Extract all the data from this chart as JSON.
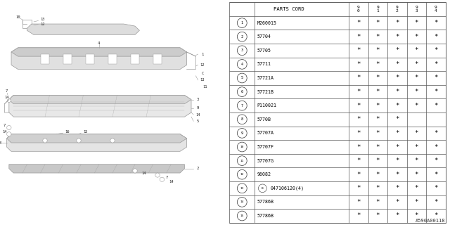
{
  "catalog_code": "A590A00118",
  "bg_color": "#ffffff",
  "rows": [
    {
      "num": "1",
      "part": "M260015",
      "stars": [
        true,
        true,
        true,
        true,
        true
      ]
    },
    {
      "num": "2",
      "part": "57704",
      "stars": [
        true,
        true,
        true,
        true,
        true
      ]
    },
    {
      "num": "3",
      "part": "57705",
      "stars": [
        true,
        true,
        true,
        true,
        true
      ]
    },
    {
      "num": "4",
      "part": "57711",
      "stars": [
        true,
        true,
        true,
        true,
        true
      ]
    },
    {
      "num": "5",
      "part": "57721A",
      "stars": [
        true,
        true,
        true,
        true,
        true
      ]
    },
    {
      "num": "6",
      "part": "57721B",
      "stars": [
        true,
        true,
        true,
        true,
        true
      ]
    },
    {
      "num": "7",
      "part": "P110021",
      "stars": [
        true,
        true,
        true,
        true,
        true
      ]
    },
    {
      "num": "8",
      "part": "5770B",
      "stars": [
        true,
        true,
        true,
        false,
        false
      ]
    },
    {
      "num": "9",
      "part": "57707A",
      "stars": [
        true,
        true,
        true,
        true,
        true
      ]
    },
    {
      "num": "10",
      "part": "57707F",
      "stars": [
        true,
        true,
        true,
        true,
        true
      ]
    },
    {
      "num": "11",
      "part": "57707G",
      "stars": [
        true,
        true,
        true,
        true,
        true
      ]
    },
    {
      "num": "12",
      "part": "96082",
      "stars": [
        true,
        true,
        true,
        true,
        true
      ]
    },
    {
      "num": "13",
      "part": "047106120(4)",
      "stars": [
        true,
        true,
        true,
        true,
        true
      ]
    },
    {
      "num": "14",
      "part": "57786B",
      "stars": [
        true,
        true,
        true,
        true,
        true
      ]
    },
    {
      "num": "15",
      "part": "57786B",
      "stars": [
        true,
        true,
        true,
        true,
        true
      ]
    }
  ],
  "year_cols": [
    "9\n0",
    "9\n1",
    "9\n2",
    "9\n3",
    "9\n4"
  ],
  "lc": "#555555",
  "lc_draw": "#999999"
}
